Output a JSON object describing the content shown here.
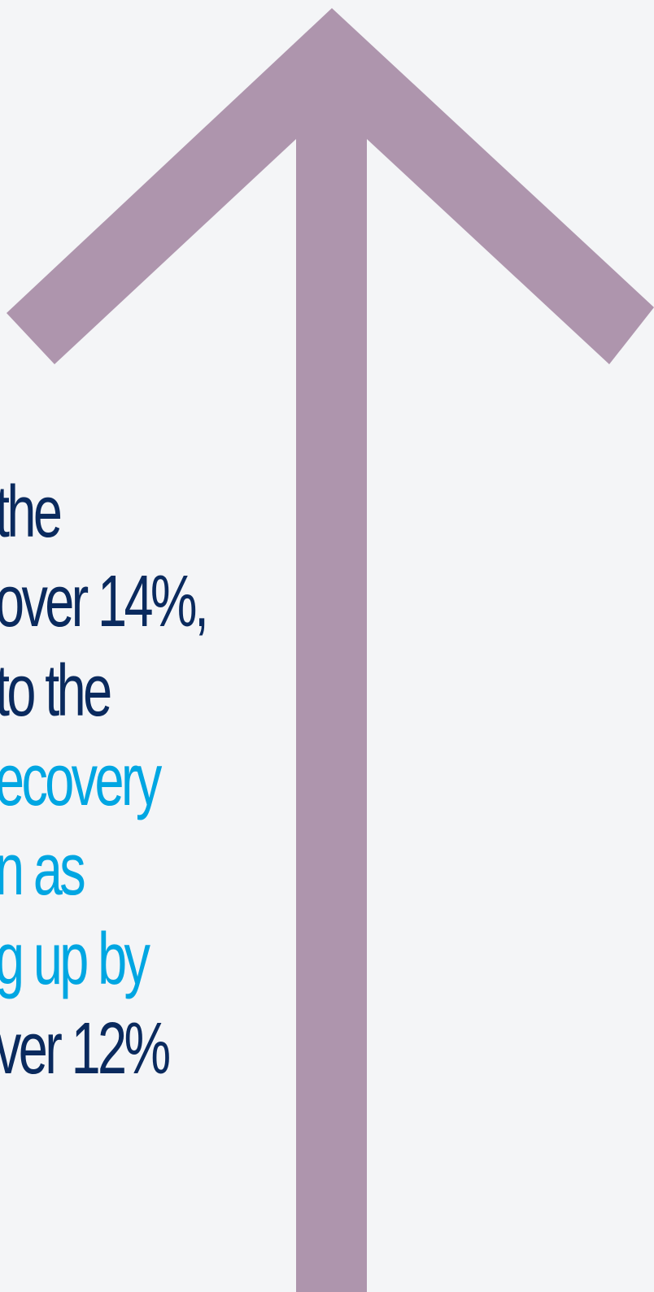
{
  "colors": {
    "background": "#f4f5f7",
    "arrow": "#ae95ad",
    "dark_text": "#0a2a5e",
    "accent_text": "#00a6e2"
  },
  "icon": "up-arrow-icon",
  "text_lines": [
    {
      "text": "the",
      "tone": "dark"
    },
    {
      "text": "over 14%,",
      "tone": "dark"
    },
    {
      "text": "to the",
      "tone": "dark"
    },
    {
      "text": "ecovery",
      "tone": "light"
    },
    {
      "text": "n as",
      "tone": "light"
    },
    {
      "text": "g up by",
      "tone": "light"
    },
    {
      "text": "ver 12%",
      "tone": "dark"
    }
  ]
}
